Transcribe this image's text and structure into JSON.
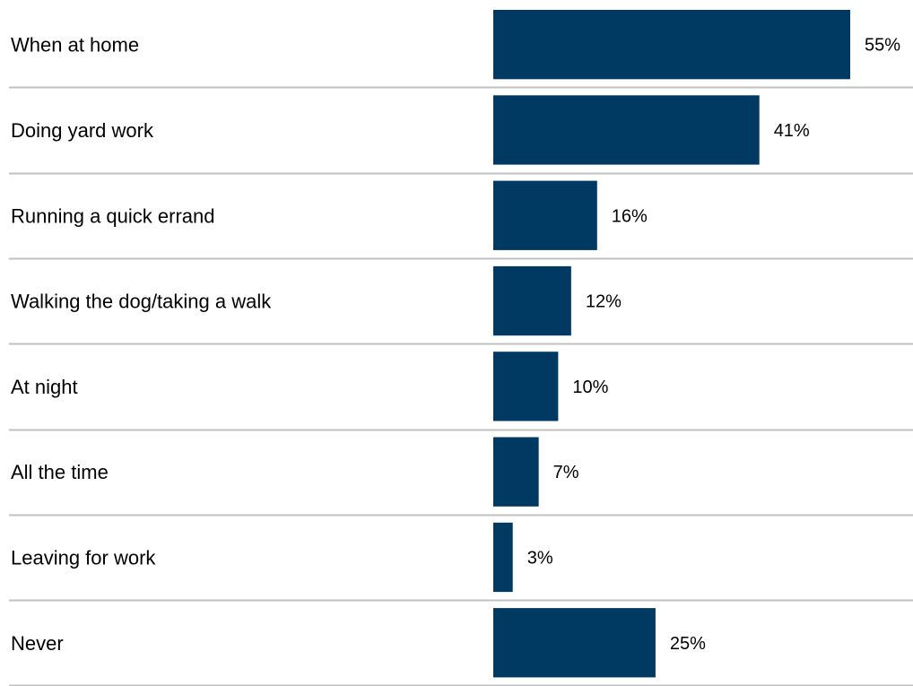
{
  "chart_data": {
    "type": "bar",
    "orientation": "horizontal",
    "categories": [
      "When at home",
      "Doing yard work",
      "Running a quick errand",
      "Walking the dog/taking a walk",
      "At night",
      "All the time",
      "Leaving for work",
      "Never"
    ],
    "values": [
      55,
      41,
      16,
      12,
      10,
      7,
      3,
      25
    ],
    "value_labels": [
      "55%",
      "41%",
      "16%",
      "12%",
      "10%",
      "7%",
      "3%",
      "25%"
    ],
    "unit": "%",
    "xlim": [
      0,
      55
    ],
    "grid": false,
    "legend": "none",
    "title": "",
    "xlabel": "",
    "ylabel": "",
    "colors": {
      "bar": "#003a63",
      "separator": "#c0c0c0",
      "text": "#000000"
    }
  }
}
